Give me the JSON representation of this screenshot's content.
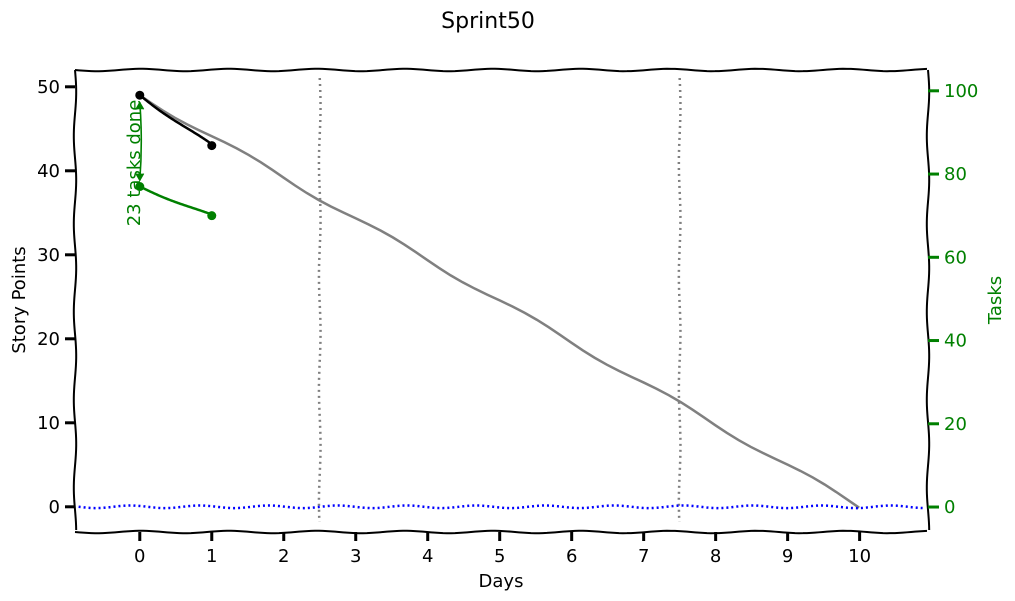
{
  "chart_data": {
    "type": "line",
    "title": "Sprint50",
    "xlabel": "Days",
    "ylabel": "Story Points",
    "y2label": "Tasks",
    "xlim": [
      -0.9,
      10.95
    ],
    "ylim": [
      -3,
      52
    ],
    "y2lim": [
      -6,
      105
    ],
    "x_ticks": [
      0,
      1,
      2,
      3,
      4,
      5,
      6,
      7,
      8,
      9,
      10
    ],
    "y_ticks": [
      0,
      10,
      20,
      30,
      40,
      50
    ],
    "y2_ticks": [
      0,
      20,
      40,
      60,
      80,
      100
    ],
    "grid": false,
    "style": "xkcd",
    "series": [
      {
        "role": "ideal",
        "axis": "left",
        "color": "#808080",
        "x": [
          0,
          10
        ],
        "y": [
          49,
          0
        ]
      },
      {
        "role": "story_points_remaining",
        "axis": "left",
        "color": "#000000",
        "x": [
          0,
          1
        ],
        "y": [
          49,
          43
        ]
      },
      {
        "role": "tasks_remaining",
        "axis": "right",
        "color": "#008000",
        "x": [
          0,
          1
        ],
        "y": [
          77,
          70
        ]
      },
      {
        "role": "zero_baseline",
        "axis": "left",
        "color": "#0000ff",
        "dotted": true,
        "x": [
          -0.9,
          10.95
        ],
        "y": [
          0,
          0
        ]
      }
    ],
    "vlines": [
      2.5,
      7.5
    ],
    "vline_color": "#808080",
    "annotation": {
      "text": "23 tasks done",
      "color": "#008000",
      "x": 0,
      "y_from": 49,
      "y_to": 38
    },
    "colors": {
      "axes": "#000000",
      "right_axis": "#008000"
    }
  }
}
